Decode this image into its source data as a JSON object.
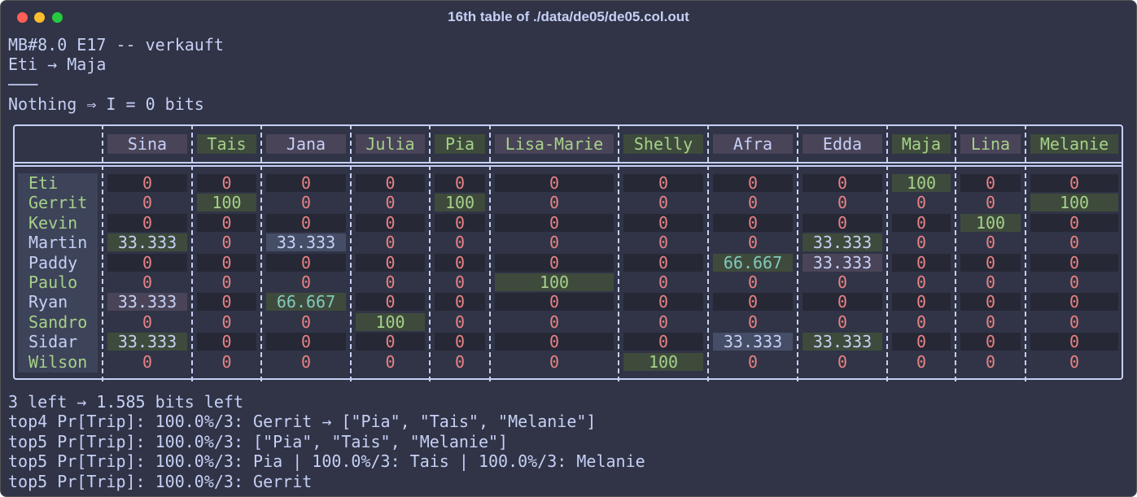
{
  "window_title": "16th table of ./data/de05/de05.col.out",
  "header_lines": [
    "MB#8.0 E17 -- verkauft",
    "Eti → Maja",
    "───",
    "Nothing ⇒ I = 0 bits"
  ],
  "table": {
    "columns": [
      {
        "label": "Sina",
        "color": "#c6d0f5",
        "background": "#4a4458"
      },
      {
        "label": "Tais",
        "color": "#a6d189",
        "background": "#3e4b3c"
      },
      {
        "label": "Jana",
        "color": "#c6d0f5",
        "background": "#4a4458"
      },
      {
        "label": "Julia",
        "color": "#a6d189",
        "background": "#4a4458"
      },
      {
        "label": "Pia",
        "color": "#a6d189",
        "background": "#3e4b3c"
      },
      {
        "label": "Lisa-Marie",
        "color": "#a6d189",
        "background": "#4a4458"
      },
      {
        "label": "Shelly",
        "color": "#a6d189",
        "background": "#3e4b3c"
      },
      {
        "label": "Afra",
        "color": "#c6d0f5",
        "background": "#4a4458"
      },
      {
        "label": "Edda",
        "color": "#c6d0f5",
        "background": "#4a4458"
      },
      {
        "label": "Maja",
        "color": "#a6d189",
        "background": "#3e4b3c"
      },
      {
        "label": "Lina",
        "color": "#a6d189",
        "background": "#4a4458"
      },
      {
        "label": "Melanie",
        "color": "#a6d189",
        "background": "#3e4b3c"
      }
    ],
    "rows": [
      {
        "label": "Eti",
        "color": "#a6d189",
        "cells": [
          0,
          0,
          0,
          0,
          0,
          0,
          0,
          0,
          0,
          100,
          0,
          0
        ],
        "backgrounds": [
          null,
          null,
          null,
          null,
          null,
          null,
          null,
          null,
          null,
          "#3e4b3c",
          null,
          null
        ]
      },
      {
        "label": "Gerrit",
        "color": "#a6d189",
        "cells": [
          0,
          100,
          0,
          0,
          100,
          0,
          0,
          0,
          0,
          0,
          0,
          100
        ],
        "backgrounds": [
          null,
          "#3e4b3c",
          null,
          null,
          "#3e4b3c",
          null,
          null,
          null,
          null,
          null,
          null,
          "#3e4b3c"
        ]
      },
      {
        "label": "Kevin",
        "color": "#a6d189",
        "cells": [
          0,
          0,
          0,
          0,
          0,
          0,
          0,
          0,
          0,
          0,
          100,
          0
        ],
        "backgrounds": [
          null,
          null,
          null,
          null,
          null,
          null,
          null,
          null,
          null,
          null,
          "#3e4b3c",
          null
        ]
      },
      {
        "label": "Martin",
        "color": "#c6d0f5",
        "cells": [
          33.333,
          0,
          33.333,
          0,
          0,
          0,
          0,
          0,
          33.333,
          0,
          0,
          0
        ],
        "backgrounds": [
          "#3e4b3c",
          null,
          "#454e66",
          null,
          null,
          null,
          null,
          null,
          "#3e4b3c",
          null,
          null,
          null
        ]
      },
      {
        "label": "Paddy",
        "color": "#c6d0f5",
        "cells": [
          0,
          0,
          0,
          0,
          0,
          0,
          0,
          66.667,
          33.333,
          0,
          0,
          0
        ],
        "backgrounds": [
          null,
          null,
          null,
          null,
          null,
          null,
          null,
          "#3e4b3c",
          "#4a4458",
          null,
          null,
          null
        ]
      },
      {
        "label": "Paulo",
        "color": "#a6d189",
        "cells": [
          0,
          0,
          0,
          0,
          0,
          100,
          0,
          0,
          0,
          0,
          0,
          0
        ],
        "backgrounds": [
          null,
          null,
          null,
          null,
          null,
          "#3e4b3c",
          null,
          null,
          null,
          null,
          null,
          null
        ]
      },
      {
        "label": "Ryan",
        "color": "#c6d0f5",
        "cells": [
          33.333,
          0,
          66.667,
          0,
          0,
          0,
          0,
          0,
          0,
          0,
          0,
          0
        ],
        "backgrounds": [
          "#4a4458",
          null,
          "#3e4b3c",
          null,
          null,
          null,
          null,
          null,
          null,
          null,
          null,
          null
        ]
      },
      {
        "label": "Sandro",
        "color": "#a6d189",
        "cells": [
          0,
          0,
          0,
          100,
          0,
          0,
          0,
          0,
          0,
          0,
          0,
          0
        ],
        "backgrounds": [
          null,
          null,
          null,
          "#3e4b3c",
          null,
          null,
          null,
          null,
          null,
          null,
          null,
          null
        ]
      },
      {
        "label": "Sidar",
        "color": "#c6d0f5",
        "cells": [
          33.333,
          0,
          0,
          0,
          0,
          0,
          0,
          33.333,
          33.333,
          0,
          0,
          0
        ],
        "backgrounds": [
          "#3e4b3c",
          null,
          null,
          null,
          null,
          null,
          null,
          "#454e66",
          "#3e4b3c",
          null,
          null,
          null
        ]
      },
      {
        "label": "Wilson",
        "color": "#a6d189",
        "cells": [
          0,
          0,
          0,
          0,
          0,
          0,
          100,
          0,
          0,
          0,
          0,
          0
        ],
        "backgrounds": [
          null,
          null,
          null,
          null,
          null,
          null,
          "#3e4b3c",
          null,
          null,
          null,
          null,
          null
        ]
      }
    ]
  },
  "footer_lines": [
    "3 left → 1.585 bits left",
    "top4 Pr[Trip]: 100.0%/3: Gerrit → [\"Pia\", \"Tais\", \"Melanie\"]",
    "top5 Pr[Trip]: 100.0%/3: [\"Pia\", \"Tais\", \"Melanie\"]",
    "top5 Pr[Trip]: 100.0%/3: Pia | 100.0%/3: Tais | 100.0%/3: Melanie",
    "top5 Pr[Trip]: 100.0%/3: Gerrit"
  ]
}
